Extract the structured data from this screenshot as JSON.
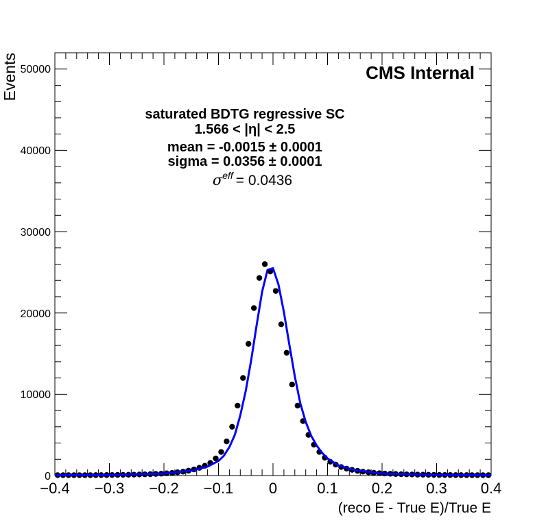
{
  "chart_data": {
    "type": "scatter",
    "title": "",
    "xlabel": "(reco E - True E)/True E",
    "ylabel": "Events",
    "xlim": [
      -0.4,
      0.4
    ],
    "ylim": [
      0,
      52000
    ],
    "x_ticks": [
      "−0.4",
      "−0.3",
      "−0.2",
      "−0.1",
      "0",
      "0.1",
      "0.2",
      "0.3",
      "0.4"
    ],
    "y_ticks": [
      "0",
      "10000",
      "20000",
      "30000",
      "40000",
      "50000"
    ],
    "grid": false,
    "annotations": {
      "experiment": "CMS Internal",
      "line1": "saturated BDTG regressive SC",
      "line2": "1.566 < |η| < 2.5",
      "line3": "mean = -0.0015 ± 0.0001",
      "line4": "sigma = 0.0356 ± 0.0001",
      "sigma_eff_value": "= 0.0436"
    },
    "series": [
      {
        "style": "markers",
        "color": "#000000",
        "x": [
          -0.395,
          -0.385,
          -0.375,
          -0.365,
          -0.355,
          -0.345,
          -0.335,
          -0.325,
          -0.315,
          -0.305,
          -0.295,
          -0.285,
          -0.275,
          -0.265,
          -0.255,
          -0.245,
          -0.235,
          -0.225,
          -0.215,
          -0.205,
          -0.195,
          -0.185,
          -0.175,
          -0.165,
          -0.155,
          -0.145,
          -0.135,
          -0.125,
          -0.115,
          -0.105,
          -0.095,
          -0.085,
          -0.075,
          -0.065,
          -0.055,
          -0.045,
          -0.035,
          -0.025,
          -0.015,
          -0.005,
          0.005,
          0.015,
          0.025,
          0.035,
          0.045,
          0.055,
          0.065,
          0.075,
          0.085,
          0.095,
          0.105,
          0.115,
          0.125,
          0.135,
          0.145,
          0.155,
          0.165,
          0.175,
          0.185,
          0.195,
          0.205,
          0.215,
          0.225,
          0.235,
          0.245,
          0.255,
          0.265,
          0.275,
          0.285,
          0.295,
          0.305,
          0.315,
          0.325,
          0.335,
          0.345,
          0.355,
          0.365,
          0.375,
          0.385,
          0.395
        ],
        "y": [
          50,
          50,
          50,
          50,
          50,
          50,
          50,
          55,
          60,
          65,
          70,
          80,
          90,
          100,
          110,
          130,
          150,
          170,
          200,
          230,
          280,
          330,
          400,
          480,
          600,
          750,
          950,
          1200,
          1550,
          2100,
          2900,
          4200,
          6000,
          8600,
          12000,
          16200,
          20600,
          24300,
          26000,
          25100,
          22700,
          18600,
          15100,
          11200,
          8600,
          6700,
          5000,
          3800,
          2900,
          2200,
          1700,
          1350,
          1050,
          850,
          700,
          580,
          480,
          400,
          340,
          290,
          250,
          215,
          190,
          165,
          145,
          130,
          115,
          105,
          95,
          85,
          75,
          70,
          65,
          60,
          55,
          55,
          50,
          50,
          50,
          50
        ]
      },
      {
        "style": "line",
        "color": "#0000ff",
        "x": [
          -0.4,
          -0.3,
          -0.2,
          -0.15,
          -0.12,
          -0.1,
          -0.09,
          -0.08,
          -0.07,
          -0.06,
          -0.05,
          -0.04,
          -0.03,
          -0.02,
          -0.01,
          0,
          0.01,
          0.02,
          0.03,
          0.04,
          0.05,
          0.06,
          0.07,
          0.08,
          0.09,
          0.1,
          0.12,
          0.15,
          0.2,
          0.3,
          0.4
        ],
        "y": [
          30,
          60,
          250,
          600,
          1100,
          1800,
          2450,
          3500,
          5000,
          7400,
          10400,
          14200,
          18500,
          22600,
          25300,
          25500,
          23500,
          20100,
          16100,
          12200,
          8900,
          6600,
          4900,
          3700,
          2800,
          2100,
          1250,
          650,
          250,
          70,
          30
        ]
      }
    ]
  }
}
